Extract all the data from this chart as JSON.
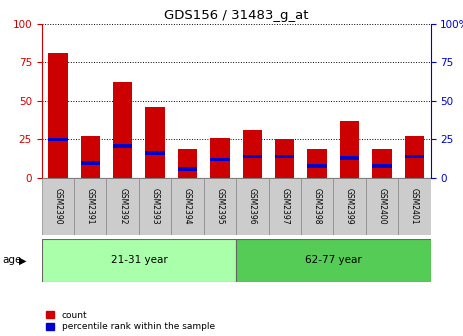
{
  "title": "GDS156 / 31483_g_at",
  "samples": [
    "GSM2390",
    "GSM2391",
    "GSM2392",
    "GSM2393",
    "GSM2394",
    "GSM2395",
    "GSM2396",
    "GSM2397",
    "GSM2398",
    "GSM2399",
    "GSM2400",
    "GSM2401"
  ],
  "count_values": [
    81,
    27,
    62,
    46,
    19,
    26,
    31,
    25,
    19,
    37,
    19,
    27
  ],
  "percentile_values": [
    25,
    10,
    21,
    16,
    6,
    12,
    14,
    14,
    8,
    13,
    8,
    14
  ],
  "bar_color": "#cc0000",
  "percentile_color": "#0000cc",
  "groups": [
    {
      "label": "21-31 year",
      "start": 0,
      "end": 6,
      "color": "#aaffaa"
    },
    {
      "label": "62-77 year",
      "start": 6,
      "end": 12,
      "color": "#55cc55"
    }
  ],
  "ylim": [
    0,
    100
  ],
  "yticks": [
    0,
    25,
    50,
    75,
    100
  ],
  "ylabel_left_color": "#cc0000",
  "ylabel_right_color": "#0000cc",
  "grid_color": "black",
  "age_label": "age",
  "legend_count_label": "count",
  "legend_percentile_label": "percentile rank within the sample",
  "background_color": "#ffffff",
  "tick_bg_color": "#cccccc",
  "bar_width": 0.6
}
